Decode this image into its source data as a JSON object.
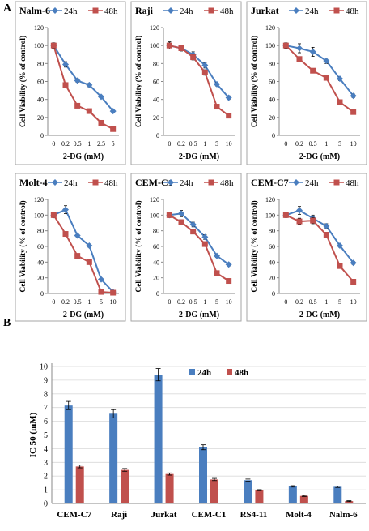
{
  "panel_labels": {
    "a": "A",
    "b": "B"
  },
  "colors": {
    "s24": "#4a7ebf",
    "s48": "#c0504d",
    "axis": "#888888",
    "grid": "#d9d9d9",
    "text": "#000000"
  },
  "line_common": {
    "legend": [
      "24h",
      "48h"
    ],
    "xlabel": "2-DG (mM)",
    "ylabel": "Cell Viability (% of control)",
    "yticks": [
      "0",
      "20",
      "40",
      "60",
      "80",
      "100",
      "120"
    ],
    "ylim": [
      0,
      120
    ]
  },
  "chart_data": [
    {
      "type": "line",
      "title": "Nalm-6",
      "x": [
        "0",
        "0.2",
        "0.5",
        "1",
        "2.5",
        "5"
      ],
      "series": [
        {
          "name": "24h",
          "values": [
            100,
            79,
            61,
            56,
            43,
            27
          ],
          "err": [
            3,
            3,
            2,
            2,
            1,
            1
          ]
        },
        {
          "name": "48h",
          "values": [
            100,
            56,
            33,
            27,
            14,
            7
          ],
          "err": [
            3,
            2,
            2,
            1,
            1,
            1
          ]
        }
      ]
    },
    {
      "type": "line",
      "title": "Raji",
      "x": [
        "0",
        "0.2",
        "0.5",
        "1",
        "5",
        "10"
      ],
      "series": [
        {
          "name": "24h",
          "values": [
            100,
            97,
            90,
            78,
            57,
            42
          ],
          "err": [
            4,
            3,
            3,
            3,
            2,
            2
          ]
        },
        {
          "name": "48h",
          "values": [
            100,
            97,
            87,
            70,
            32,
            22
          ],
          "err": [
            4,
            3,
            3,
            3,
            2,
            1
          ]
        }
      ]
    },
    {
      "type": "line",
      "title": "Jurkat",
      "x": [
        "0",
        "0.2",
        "0.5",
        "1",
        "5",
        "10"
      ],
      "series": [
        {
          "name": "24h",
          "values": [
            100,
            97,
            93,
            83,
            63,
            44
          ],
          "err": [
            3,
            5,
            5,
            3,
            2,
            2
          ]
        },
        {
          "name": "48h",
          "values": [
            100,
            85,
            72,
            64,
            37,
            26
          ],
          "err": [
            3,
            2,
            2,
            2,
            2,
            2
          ]
        }
      ]
    },
    {
      "type": "line",
      "title": "Molt-4",
      "x": [
        "0",
        "0.2",
        "0.5",
        "1",
        "5",
        "10"
      ],
      "series": [
        {
          "name": "24h",
          "values": [
            100,
            107,
            74,
            61,
            18,
            2
          ],
          "err": [
            3,
            5,
            3,
            2,
            1,
            1
          ]
        },
        {
          "name": "48h",
          "values": [
            100,
            76,
            48,
            40,
            2,
            1
          ],
          "err": [
            3,
            2,
            2,
            2,
            1,
            0
          ]
        }
      ]
    },
    {
      "type": "line",
      "title": "CEM-C1",
      "x": [
        "0",
        "0.2",
        "0.5",
        "1",
        "5",
        "10"
      ],
      "series": [
        {
          "name": "24h",
          "values": [
            100,
            102,
            88,
            72,
            48,
            37
          ],
          "err": [
            3,
            4,
            3,
            3,
            2,
            2
          ]
        },
        {
          "name": "48h",
          "values": [
            100,
            91,
            79,
            63,
            26,
            16
          ],
          "err": [
            3,
            3,
            3,
            2,
            2,
            1
          ]
        }
      ]
    },
    {
      "type": "line",
      "title": "CEM-C7",
      "x": [
        "0",
        "0.2",
        "0.5",
        "1",
        "5",
        "10"
      ],
      "series": [
        {
          "name": "24h",
          "values": [
            100,
            106,
            96,
            86,
            61,
            39
          ],
          "err": [
            3,
            5,
            4,
            3,
            2,
            2
          ]
        },
        {
          "name": "48h",
          "values": [
            100,
            92,
            93,
            75,
            35,
            15
          ],
          "err": [
            3,
            4,
            4,
            3,
            2,
            1
          ]
        }
      ]
    },
    {
      "type": "bar",
      "title": "",
      "categories": [
        "CEM-C7",
        "Raji",
        "Jurkat",
        "CEM-C1",
        "RS4-11",
        "Molt-4",
        "Nalm-6"
      ],
      "ylabel": "IC 50 (mM)",
      "yticks": [
        "0",
        "1",
        "2",
        "3",
        "4",
        "5",
        "6",
        "7",
        "8",
        "9",
        "10"
      ],
      "ylim": [
        0,
        10
      ],
      "series": [
        {
          "name": "24h",
          "values": [
            7.15,
            6.55,
            9.4,
            4.1,
            1.7,
            1.25,
            1.22
          ],
          "err": [
            0.3,
            0.3,
            0.45,
            0.18,
            0.08,
            0.05,
            0.05
          ]
        },
        {
          "name": "48h",
          "values": [
            2.7,
            2.45,
            2.15,
            1.75,
            0.97,
            0.55,
            0.17
          ],
          "err": [
            0.1,
            0.1,
            0.08,
            0.08,
            0.04,
            0.04,
            0.03
          ]
        }
      ]
    }
  ]
}
